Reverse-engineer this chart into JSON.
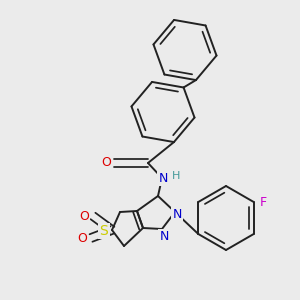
{
  "bg_color": "#ebebeb",
  "bond_color": "#222222",
  "bw": 1.4,
  "dbo": 0.05,
  "atom_colors": {
    "O": "#dd0000",
    "N": "#0000cc",
    "S": "#cccc00",
    "F": "#cc00cc",
    "H": "#449999"
  }
}
